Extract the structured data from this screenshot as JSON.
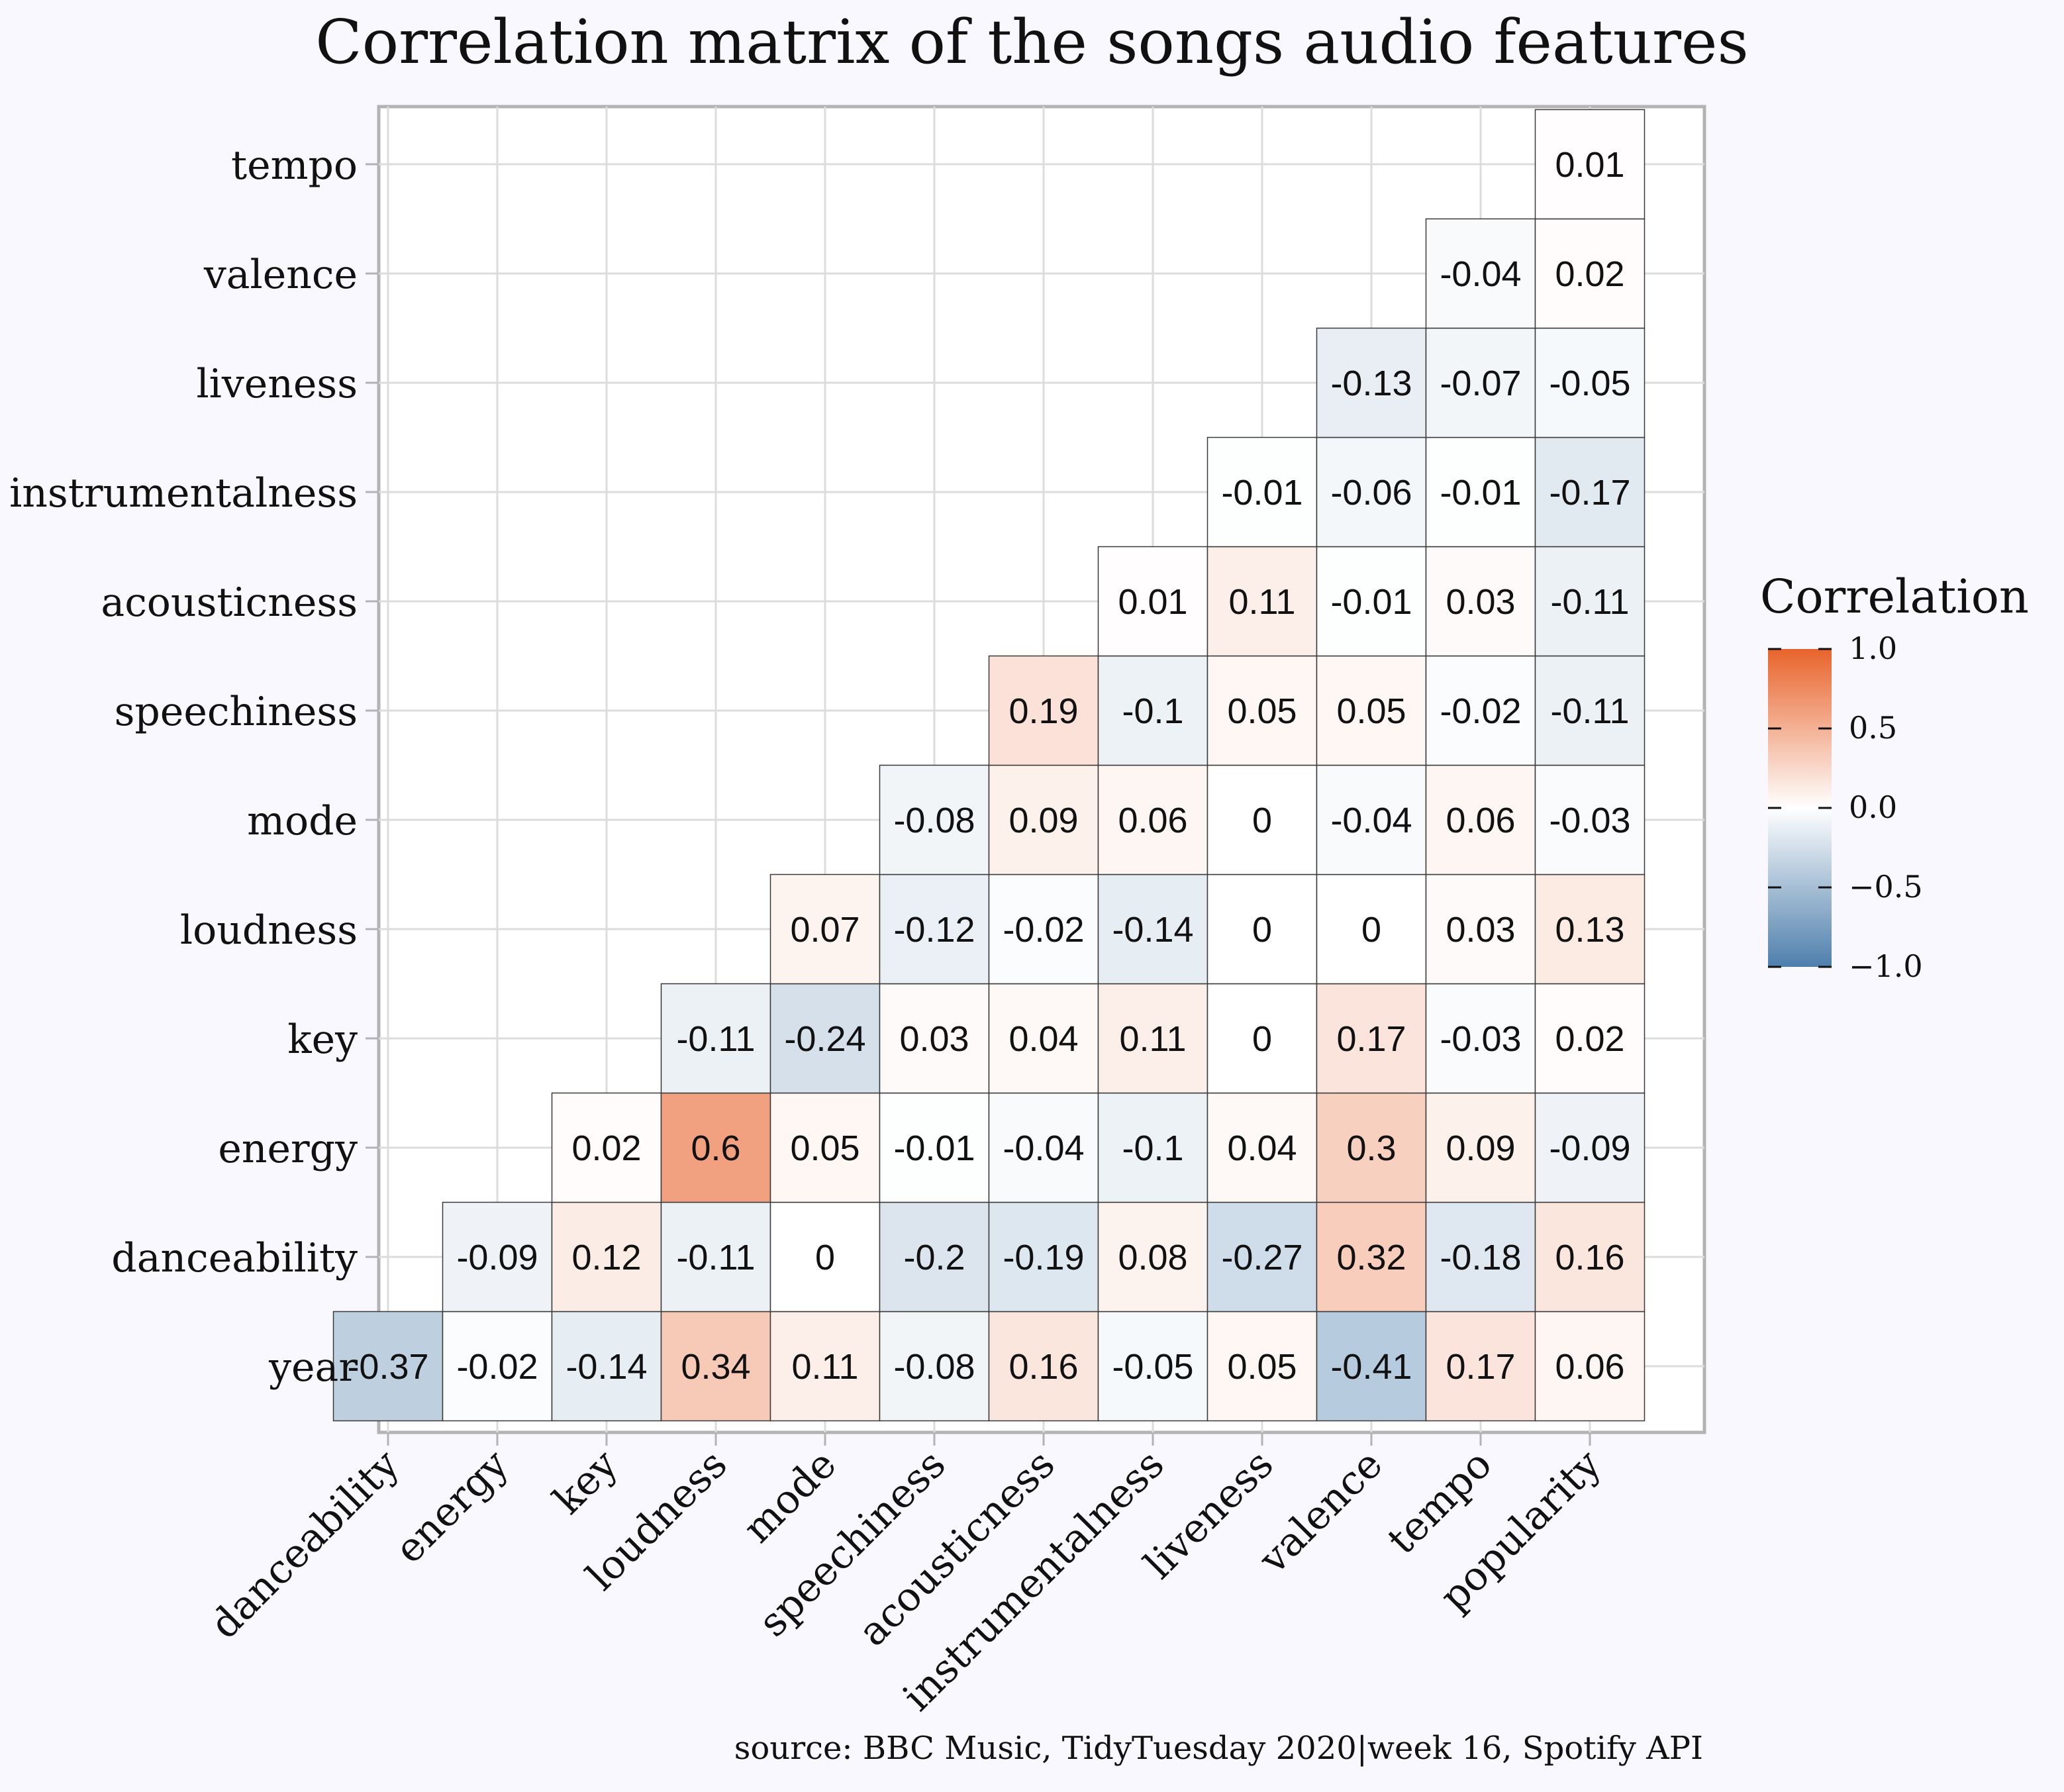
{
  "chart_data": {
    "type": "heatmap",
    "title": "Correlation matrix of the songs audio features",
    "caption": "source: BBC Music, TidyTuesday 2020|week 16, Spotify API",
    "x_categories": [
      "danceability",
      "energy",
      "key",
      "loudness",
      "mode",
      "speechiness",
      "acousticness",
      "instrumentalness",
      "liveness",
      "valence",
      "tempo",
      "popularity"
    ],
    "y_categories": [
      "year",
      "danceability",
      "energy",
      "key",
      "loudness",
      "mode",
      "speechiness",
      "acousticness",
      "instrumentalness",
      "liveness",
      "valence",
      "tempo"
    ],
    "cells": [
      {
        "x": "danceability",
        "y": "year",
        "value": -0.37,
        "label": "-0.37"
      },
      {
        "x": "energy",
        "y": "year",
        "value": -0.02,
        "label": "-0.02"
      },
      {
        "x": "key",
        "y": "year",
        "value": -0.14,
        "label": "-0.14"
      },
      {
        "x": "loudness",
        "y": "year",
        "value": 0.34,
        "label": "0.34"
      },
      {
        "x": "mode",
        "y": "year",
        "value": 0.11,
        "label": "0.11"
      },
      {
        "x": "speechiness",
        "y": "year",
        "value": -0.08,
        "label": "-0.08"
      },
      {
        "x": "acousticness",
        "y": "year",
        "value": 0.16,
        "label": "0.16"
      },
      {
        "x": "instrumentalness",
        "y": "year",
        "value": -0.05,
        "label": "-0.05"
      },
      {
        "x": "liveness",
        "y": "year",
        "value": 0.05,
        "label": "0.05"
      },
      {
        "x": "valence",
        "y": "year",
        "value": -0.41,
        "label": "-0.41"
      },
      {
        "x": "tempo",
        "y": "year",
        "value": 0.17,
        "label": "0.17"
      },
      {
        "x": "popularity",
        "y": "year",
        "value": 0.06,
        "label": "0.06"
      },
      {
        "x": "energy",
        "y": "danceability",
        "value": -0.09,
        "label": "-0.09"
      },
      {
        "x": "key",
        "y": "danceability",
        "value": 0.12,
        "label": "0.12"
      },
      {
        "x": "loudness",
        "y": "danceability",
        "value": -0.11,
        "label": "-0.11"
      },
      {
        "x": "mode",
        "y": "danceability",
        "value": 0,
        "label": "0"
      },
      {
        "x": "speechiness",
        "y": "danceability",
        "value": -0.2,
        "label": "-0.2"
      },
      {
        "x": "acousticness",
        "y": "danceability",
        "value": -0.19,
        "label": "-0.19"
      },
      {
        "x": "instrumentalness",
        "y": "danceability",
        "value": 0.08,
        "label": "0.08"
      },
      {
        "x": "liveness",
        "y": "danceability",
        "value": -0.27,
        "label": "-0.27"
      },
      {
        "x": "valence",
        "y": "danceability",
        "value": 0.32,
        "label": "0.32"
      },
      {
        "x": "tempo",
        "y": "danceability",
        "value": -0.18,
        "label": "-0.18"
      },
      {
        "x": "popularity",
        "y": "danceability",
        "value": 0.16,
        "label": "0.16"
      },
      {
        "x": "key",
        "y": "energy",
        "value": 0.02,
        "label": "0.02"
      },
      {
        "x": "loudness",
        "y": "energy",
        "value": 0.6,
        "label": "0.6"
      },
      {
        "x": "mode",
        "y": "energy",
        "value": 0.05,
        "label": "0.05"
      },
      {
        "x": "speechiness",
        "y": "energy",
        "value": -0.01,
        "label": "-0.01"
      },
      {
        "x": "acousticness",
        "y": "energy",
        "value": -0.04,
        "label": "-0.04"
      },
      {
        "x": "instrumentalness",
        "y": "energy",
        "value": -0.1,
        "label": "-0.1"
      },
      {
        "x": "liveness",
        "y": "energy",
        "value": 0.04,
        "label": "0.04"
      },
      {
        "x": "valence",
        "y": "energy",
        "value": 0.3,
        "label": "0.3"
      },
      {
        "x": "tempo",
        "y": "energy",
        "value": 0.09,
        "label": "0.09"
      },
      {
        "x": "popularity",
        "y": "energy",
        "value": -0.09,
        "label": "-0.09"
      },
      {
        "x": "loudness",
        "y": "key",
        "value": -0.11,
        "label": "-0.11"
      },
      {
        "x": "mode",
        "y": "key",
        "value": -0.24,
        "label": "-0.24"
      },
      {
        "x": "speechiness",
        "y": "key",
        "value": 0.03,
        "label": "0.03"
      },
      {
        "x": "acousticness",
        "y": "key",
        "value": 0.04,
        "label": "0.04"
      },
      {
        "x": "instrumentalness",
        "y": "key",
        "value": 0.11,
        "label": "0.11"
      },
      {
        "x": "liveness",
        "y": "key",
        "value": 0,
        "label": "0"
      },
      {
        "x": "valence",
        "y": "key",
        "value": 0.17,
        "label": "0.17"
      },
      {
        "x": "tempo",
        "y": "key",
        "value": -0.03,
        "label": "-0.03"
      },
      {
        "x": "popularity",
        "y": "key",
        "value": 0.02,
        "label": "0.02"
      },
      {
        "x": "mode",
        "y": "loudness",
        "value": 0.07,
        "label": "0.07"
      },
      {
        "x": "speechiness",
        "y": "loudness",
        "value": -0.12,
        "label": "-0.12"
      },
      {
        "x": "acousticness",
        "y": "loudness",
        "value": -0.02,
        "label": "-0.02"
      },
      {
        "x": "instrumentalness",
        "y": "loudness",
        "value": -0.14,
        "label": "-0.14"
      },
      {
        "x": "liveness",
        "y": "loudness",
        "value": 0,
        "label": "0"
      },
      {
        "x": "valence",
        "y": "loudness",
        "value": 0,
        "label": "0"
      },
      {
        "x": "tempo",
        "y": "loudness",
        "value": 0.03,
        "label": "0.03"
      },
      {
        "x": "popularity",
        "y": "loudness",
        "value": 0.13,
        "label": "0.13"
      },
      {
        "x": "speechiness",
        "y": "mode",
        "value": -0.08,
        "label": "-0.08"
      },
      {
        "x": "acousticness",
        "y": "mode",
        "value": 0.09,
        "label": "0.09"
      },
      {
        "x": "instrumentalness",
        "y": "mode",
        "value": 0.06,
        "label": "0.06"
      },
      {
        "x": "liveness",
        "y": "mode",
        "value": 0,
        "label": "0"
      },
      {
        "x": "valence",
        "y": "mode",
        "value": -0.04,
        "label": "-0.04"
      },
      {
        "x": "tempo",
        "y": "mode",
        "value": 0.06,
        "label": "0.06"
      },
      {
        "x": "popularity",
        "y": "mode",
        "value": -0.03,
        "label": "-0.03"
      },
      {
        "x": "acousticness",
        "y": "speechiness",
        "value": 0.19,
        "label": "0.19"
      },
      {
        "x": "instrumentalness",
        "y": "speechiness",
        "value": -0.1,
        "label": "-0.1"
      },
      {
        "x": "liveness",
        "y": "speechiness",
        "value": 0.05,
        "label": "0.05"
      },
      {
        "x": "valence",
        "y": "speechiness",
        "value": 0.05,
        "label": "0.05"
      },
      {
        "x": "tempo",
        "y": "speechiness",
        "value": -0.02,
        "label": "-0.02"
      },
      {
        "x": "popularity",
        "y": "speechiness",
        "value": -0.11,
        "label": "-0.11"
      },
      {
        "x": "instrumentalness",
        "y": "acousticness",
        "value": 0.01,
        "label": "0.01"
      },
      {
        "x": "liveness",
        "y": "acousticness",
        "value": 0.11,
        "label": "0.11"
      },
      {
        "x": "valence",
        "y": "acousticness",
        "value": -0.01,
        "label": "-0.01"
      },
      {
        "x": "tempo",
        "y": "acousticness",
        "value": 0.03,
        "label": "0.03"
      },
      {
        "x": "popularity",
        "y": "acousticness",
        "value": -0.11,
        "label": "-0.11"
      },
      {
        "x": "liveness",
        "y": "instrumentalness",
        "value": -0.01,
        "label": "-0.01"
      },
      {
        "x": "valence",
        "y": "instrumentalness",
        "value": -0.06,
        "label": "-0.06"
      },
      {
        "x": "tempo",
        "y": "instrumentalness",
        "value": -0.01,
        "label": "-0.01"
      },
      {
        "x": "popularity",
        "y": "instrumentalness",
        "value": -0.17,
        "label": "-0.17"
      },
      {
        "x": "valence",
        "y": "liveness",
        "value": -0.13,
        "label": "-0.13"
      },
      {
        "x": "tempo",
        "y": "liveness",
        "value": -0.07,
        "label": "-0.07"
      },
      {
        "x": "popularity",
        "y": "liveness",
        "value": -0.05,
        "label": "-0.05"
      },
      {
        "x": "tempo",
        "y": "valence",
        "value": -0.04,
        "label": "-0.04"
      },
      {
        "x": "popularity",
        "y": "valence",
        "value": 0.02,
        "label": "0.02"
      },
      {
        "x": "popularity",
        "y": "tempo",
        "value": 0.01,
        "label": "0.01"
      }
    ],
    "legend": {
      "title": "Correlation",
      "position": "right",
      "range": [
        -1,
        1
      ],
      "ticks": [
        1.0,
        0.5,
        0.0,
        -0.5,
        -1.0
      ],
      "tick_labels": [
        "1.0",
        "0.5",
        "0.0",
        "−0.5",
        "−1.0"
      ],
      "colors": {
        "low": "#4e7fac",
        "mid": "#ffffff",
        "high": "#e8632b"
      }
    },
    "grid": true,
    "panel_background": "#ffffff",
    "page_background": "#f8f8fe"
  }
}
